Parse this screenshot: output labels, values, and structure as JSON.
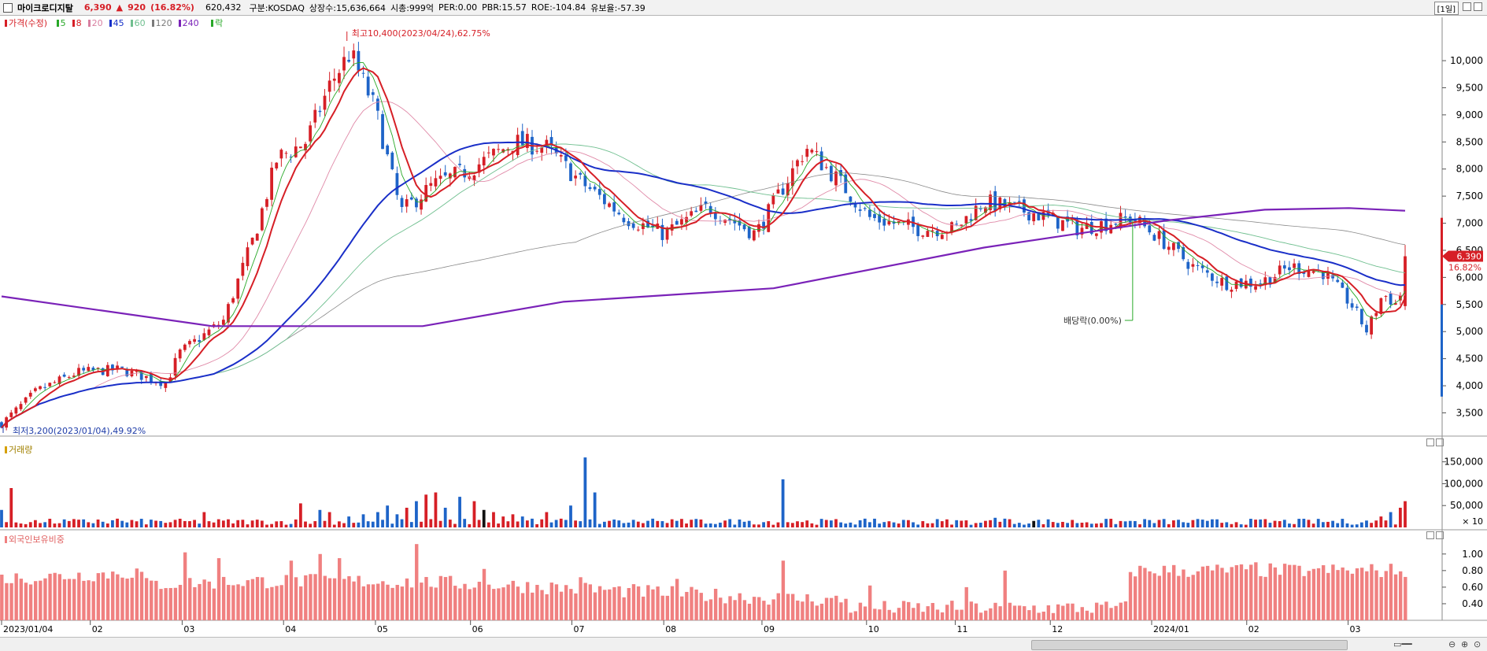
{
  "header": {
    "name": "마이크로디지탈",
    "price": "6,390",
    "change_arrow": "▲",
    "change": "920",
    "change_pct": "(16.82%)",
    "volume": "620,432",
    "market": "구분:KOSDAQ",
    "shares": "상장수:15,636,664",
    "mcap": "시총:999억",
    "per": "PER:0.00",
    "pbr": "PBR:15.57",
    "roe": "ROE:-104.84",
    "float": "유보율:-57.39",
    "period": "[1일]"
  },
  "legend": {
    "price_label": "가격(수정)",
    "ma": [
      {
        "label": "5",
        "color": "#28a828"
      },
      {
        "label": "8",
        "color": "#d61f26"
      },
      {
        "label": "20",
        "color": "#d87fa0"
      },
      {
        "label": "45",
        "color": "#1630c8"
      },
      {
        "label": "60",
        "color": "#6fbf8f"
      },
      {
        "label": "120",
        "color": "#7a7a7a"
      },
      {
        "label": "240",
        "color": "#7a22b8"
      }
    ],
    "extra_label": "락",
    "volume_label": "거래량",
    "foreign_label": "외국인보유비중"
  },
  "colors": {
    "up": "#d61f26",
    "down": "#1e64c8",
    "foreign": "#f08080",
    "ma8": "#d61f26",
    "ma45": "#1a2fc8",
    "ma240": "#7a22b8"
  },
  "annotations": {
    "high": "최고10,400(2023/04/24),62.75%",
    "low": "최저3,200(2023/01/04),49.92%",
    "dividend": "배당락(0.00%)",
    "last_price": "6,390",
    "last_pct": "16.82%"
  },
  "chart_data": {
    "type": "candlestick",
    "x_labels": [
      "2023/01/04",
      "02",
      "03",
      "04",
      "05",
      "06",
      "07",
      "08",
      "09",
      "10",
      "11",
      "12",
      "2024/01",
      "02",
      "03"
    ],
    "price_axis": {
      "ticks": [
        "10,000",
        "9,500",
        "9,000",
        "8,500",
        "8,000",
        "7,500",
        "7,000",
        "6,500",
        "6,000",
        "5,500",
        "5,000",
        "4,500",
        "4,000",
        "3,500"
      ],
      "range": [
        3100,
        10800
      ]
    },
    "volume_axis": {
      "ticks": [
        "150,000",
        "100,000",
        "50,000"
      ],
      "unit": "× 10",
      "range": [
        0,
        180000
      ]
    },
    "foreign_axis": {
      "ticks": [
        "1.00",
        "0.80",
        "0.60",
        "0.40"
      ],
      "range": [
        0.2,
        1.15
      ]
    },
    "price_points": [
      [
        "2023-01-04",
        3300
      ],
      [
        "2023-01-15",
        3900
      ],
      [
        "2023-01-28",
        4250
      ],
      [
        "2023-02-10",
        4300
      ],
      [
        "2023-02-25",
        4050
      ],
      [
        "2023-03-01",
        4600
      ],
      [
        "2023-03-15",
        5200
      ],
      [
        "2023-03-25",
        6800
      ],
      [
        "2023-04-01",
        8200
      ],
      [
        "2023-04-10",
        8500
      ],
      [
        "2023-04-18",
        9600
      ],
      [
        "2023-04-24",
        10150
      ],
      [
        "2023-05-02",
        9100
      ],
      [
        "2023-05-10",
        7200
      ],
      [
        "2023-05-20",
        7700
      ],
      [
        "2023-06-01",
        8000
      ],
      [
        "2023-06-15",
        8500
      ],
      [
        "2023-06-25",
        8400
      ],
      [
        "2023-07-05",
        7800
      ],
      [
        "2023-07-20",
        7100
      ],
      [
        "2023-08-01",
        6800
      ],
      [
        "2023-08-15",
        7300
      ],
      [
        "2023-08-30",
        6800
      ],
      [
        "2023-09-05",
        7400
      ],
      [
        "2023-09-15",
        8400
      ],
      [
        "2023-09-25",
        7800
      ],
      [
        "2023-10-05",
        7100
      ],
      [
        "2023-10-20",
        6900
      ],
      [
        "2023-11-01",
        6900
      ],
      [
        "2023-11-10",
        7400
      ],
      [
        "2023-11-25",
        7200
      ],
      [
        "2023-12-10",
        6900
      ],
      [
        "2023-12-27",
        7100
      ],
      [
        "2024-01-05",
        6700
      ],
      [
        "2024-01-15",
        6200
      ],
      [
        "2024-01-25",
        5900
      ],
      [
        "2024-02-05",
        5900
      ],
      [
        "2024-02-15",
        6200
      ],
      [
        "2024-02-25",
        6100
      ],
      [
        "2024-03-05",
        5500
      ],
      [
        "2024-03-10",
        5000
      ],
      [
        "2024-03-15",
        5700
      ],
      [
        "2024-03-20",
        5470
      ],
      [
        "2024-03-22",
        6390
      ]
    ]
  }
}
